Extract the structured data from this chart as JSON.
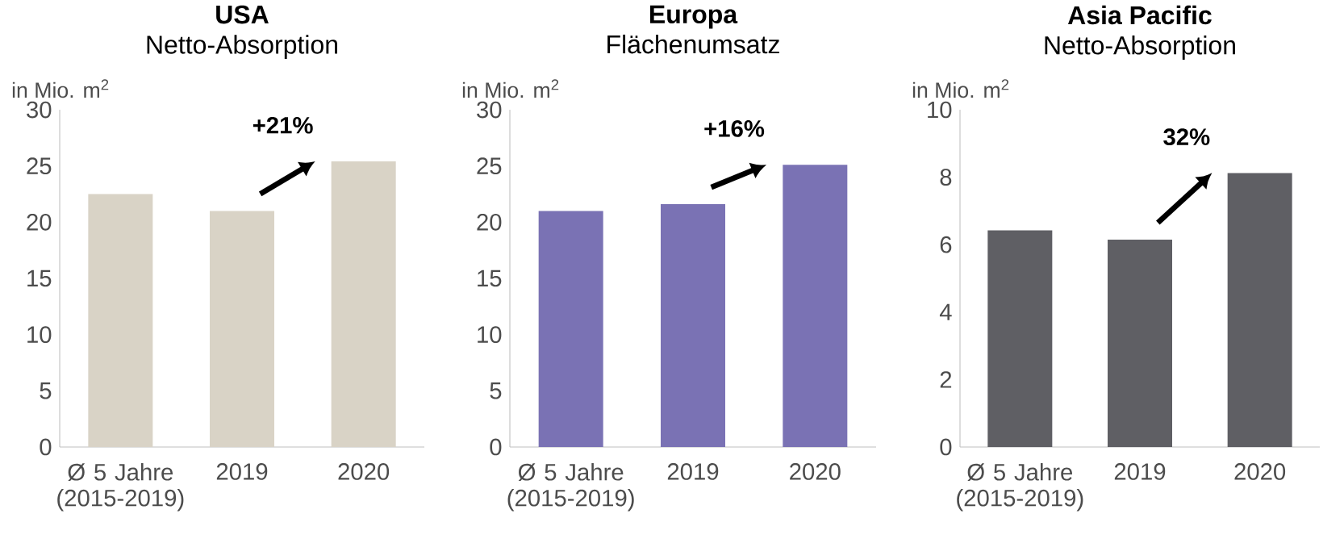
{
  "chart_data": [
    {
      "type": "bar",
      "title": "USA",
      "subtitle": "Netto-Absorption",
      "ylabel": "in Mio. m$^{2}$",
      "categories": [
        "Ø 5 Jahre (2015-2019)",
        "2019",
        "2020"
      ],
      "values": [
        22.5,
        21.0,
        25.4
      ],
      "color": "#d9d3c6",
      "ylim": [
        0,
        30
      ],
      "yticks": [
        0,
        5,
        10,
        15,
        20,
        25,
        30
      ],
      "annotations": [
        "+21%"
      ]
    },
    {
      "type": "bar",
      "title": "Europa",
      "subtitle": "Flächenumsatz",
      "ylabel": "in Mio. m$^{2}$",
      "categories": [
        "Ø 5 Jahre (2015-2019)",
        "2019",
        "2020"
      ],
      "values": [
        21.0,
        21.6,
        25.1
      ],
      "color": "#7a72b4",
      "ylim": [
        0,
        30
      ],
      "yticks": [
        0,
        5,
        10,
        15,
        20,
        25,
        30
      ],
      "annotations": [
        "+16%"
      ]
    },
    {
      "type": "bar",
      "title": "Asia Pacific",
      "subtitle": "Netto-Absorption",
      "ylabel": "in Mio. m$^{2}$",
      "categories": [
        "Ø 5 Jahre (2015-2019)",
        "2019",
        "2020"
      ],
      "values": [
        6.42,
        6.15,
        8.12
      ],
      "color": "#5f5f64",
      "ylim": [
        0,
        10
      ],
      "yticks": [
        0,
        2,
        4,
        6,
        8,
        10
      ],
      "annotations": [
        "32%"
      ]
    }
  ]
}
